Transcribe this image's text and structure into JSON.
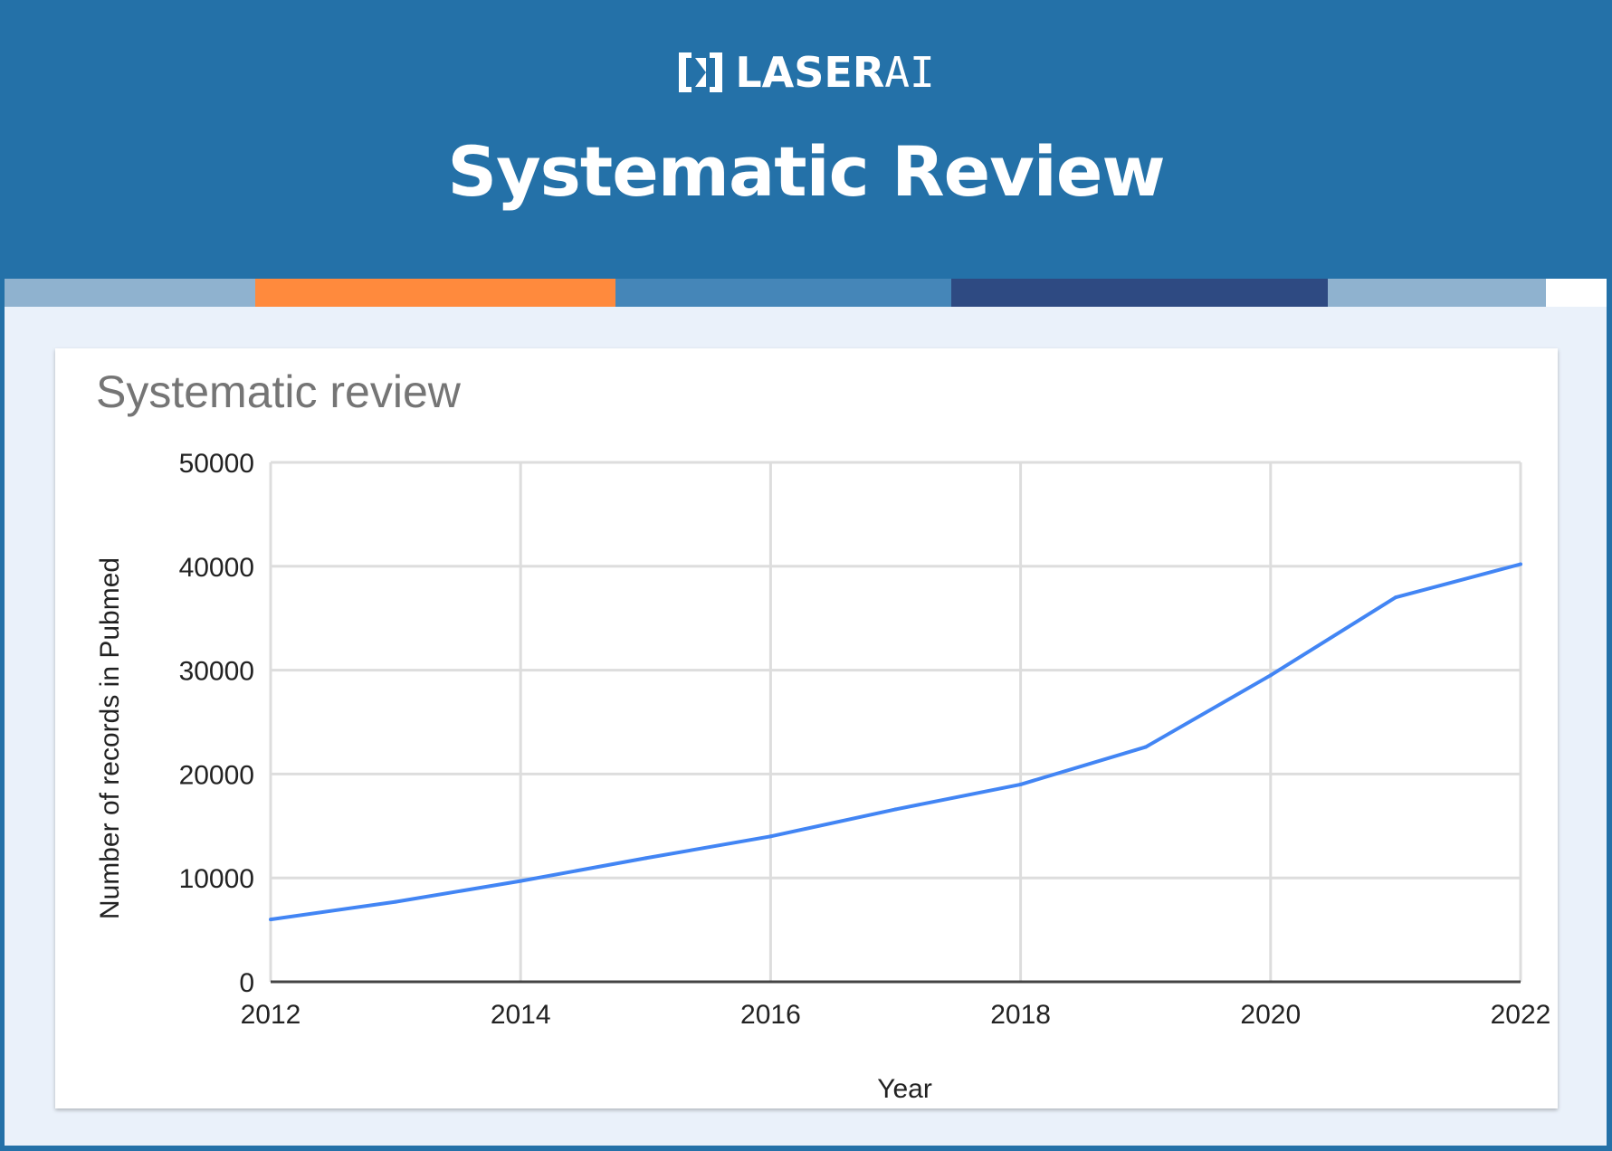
{
  "brand": {
    "logo_text": "LASER",
    "logo_ai": "AI"
  },
  "page_title": "Systematic Review",
  "colors": {
    "header_bg": "#2471a8",
    "panel_bg": "#eaf1fa",
    "line": "#4285f4",
    "stripes": [
      "#8fb2cf",
      "#ff8a3d",
      "#4586b8",
      "#2e4a82",
      "#8fb2cf",
      "#ffffff"
    ]
  },
  "chart_data": {
    "type": "line",
    "title": "Systematic review",
    "xlabel": "Year",
    "ylabel": "Number of records in Pubmed",
    "x": [
      2012,
      2013,
      2014,
      2015,
      2016,
      2017,
      2018,
      2019,
      2020,
      2021,
      2022
    ],
    "values": [
      6000,
      7700,
      9700,
      11900,
      14000,
      16600,
      19000,
      22600,
      29500,
      37000,
      40200
    ],
    "xlim": [
      2012,
      2022
    ],
    "ylim": [
      0,
      50000
    ],
    "x_ticks": [
      "2012",
      "2014",
      "2016",
      "2018",
      "2020",
      "2022"
    ],
    "y_ticks": [
      "0",
      "10000",
      "20000",
      "30000",
      "40000",
      "50000"
    ],
    "grid": true,
    "legend": "none"
  }
}
